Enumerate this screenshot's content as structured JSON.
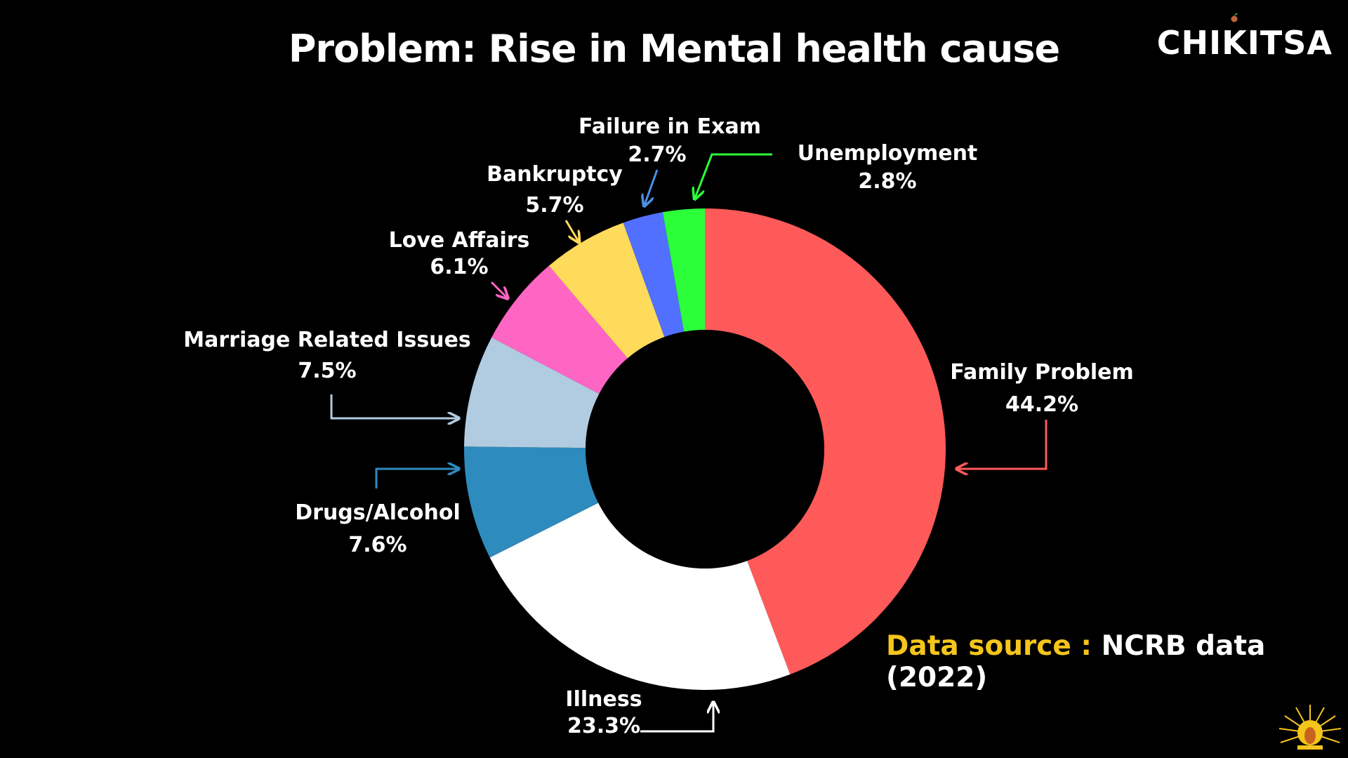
{
  "title": "Problem: Rise in Mental health cause",
  "brand": "CHIKITSA",
  "source": {
    "label": "Data source :",
    "value": "NCRB data (2022)"
  },
  "colors": {
    "background": "#000000",
    "source_label": "#f5c51b"
  },
  "chart_data": {
    "type": "pie",
    "variant": "donut",
    "title": "Problem: Rise in Mental health cause",
    "slices": [
      {
        "name": "Family Problem",
        "label": "44.2%",
        "value": 44.2,
        "color": "#ff5a5a"
      },
      {
        "name": "Illness",
        "label": "23.3%",
        "value": 23.3,
        "color": "#ffffff"
      },
      {
        "name": "Drugs/Alcohol",
        "label": "7.6%",
        "value": 7.6,
        "color": "#2e8bbd"
      },
      {
        "name": "Marriage Related Issues",
        "label": "7.5%",
        "value": 7.5,
        "color": "#b1cbe0"
      },
      {
        "name": "Love Affairs",
        "label": "6.1%",
        "value": 6.1,
        "color": "#ff66c4"
      },
      {
        "name": "Bankruptcy",
        "label": "5.7%",
        "value": 5.7,
        "color": "#ffdb5c"
      },
      {
        "name": "Failure in Exam",
        "label": "2.7%",
        "value": 2.7,
        "color": "#5170ff"
      },
      {
        "name": "Unemployment",
        "label": "2.8%",
        "value": 2.8,
        "color": "#2bff3a"
      }
    ]
  }
}
